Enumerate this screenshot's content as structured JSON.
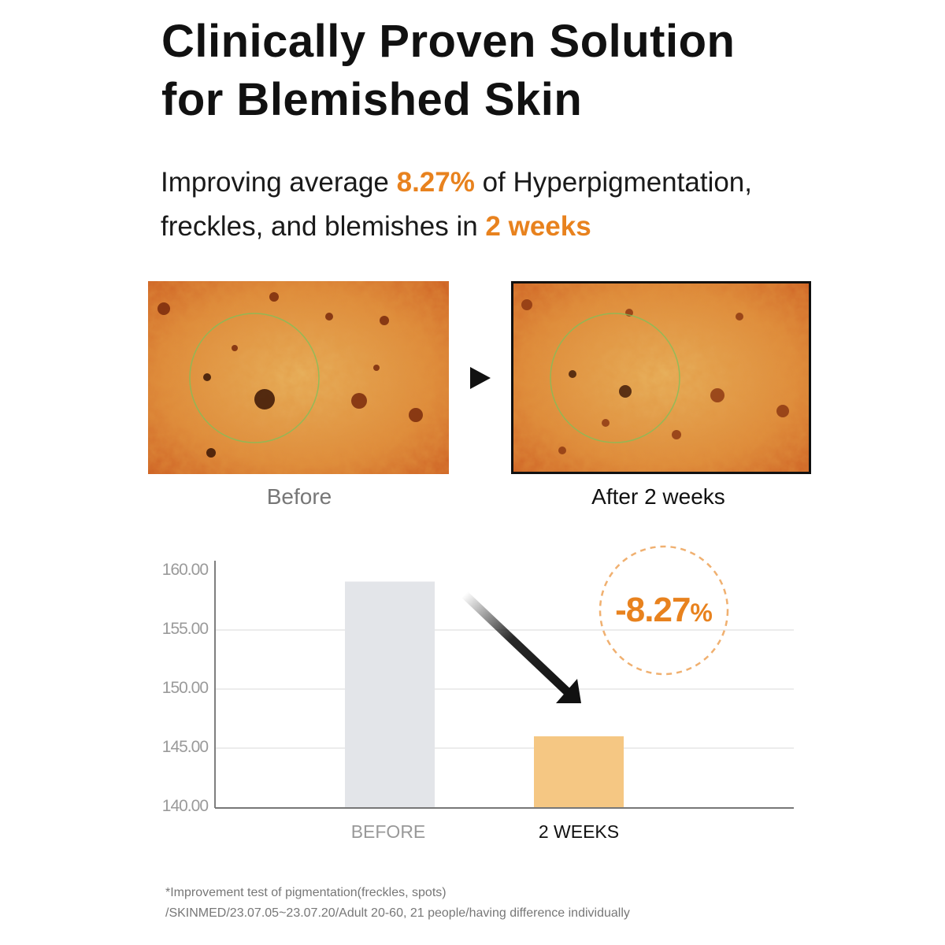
{
  "header": {
    "title_line1": "Clinically Proven Solution",
    "title_line2": "for Blemished Skin"
  },
  "subtitle": {
    "part1": "Improving average ",
    "highlight1": "8.27%",
    "part2": " of Hyperpigmentation,",
    "part3": "freckles, and blemishes in ",
    "highlight2": "2 weeks"
  },
  "images": {
    "before_caption": "Before",
    "after_caption": "After 2 weeks",
    "arrow_icon": "play-triangle-icon"
  },
  "colors": {
    "accent": "#e8821e",
    "before_bar": "#e3e5e9",
    "after_bar": "#f5c783"
  },
  "chart_data": {
    "type": "bar",
    "categories": [
      "BEFORE",
      "2 WEEKS"
    ],
    "values": [
      159.1,
      146.0
    ],
    "ylim": [
      140,
      160
    ],
    "yticks": [
      "160.00",
      "155.00",
      "150.00",
      "145.00",
      "140.00"
    ],
    "grid": true,
    "annotation": "-8.27",
    "annotation_unit": "%",
    "xlabel": "",
    "ylabel": ""
  },
  "footnote": {
    "line1": "*Improvement test of pigmentation(freckles, spots)",
    "line2": "/SKINMED/23.07.05~23.07.20/Adult 20-60, 21 people/having difference individually"
  }
}
